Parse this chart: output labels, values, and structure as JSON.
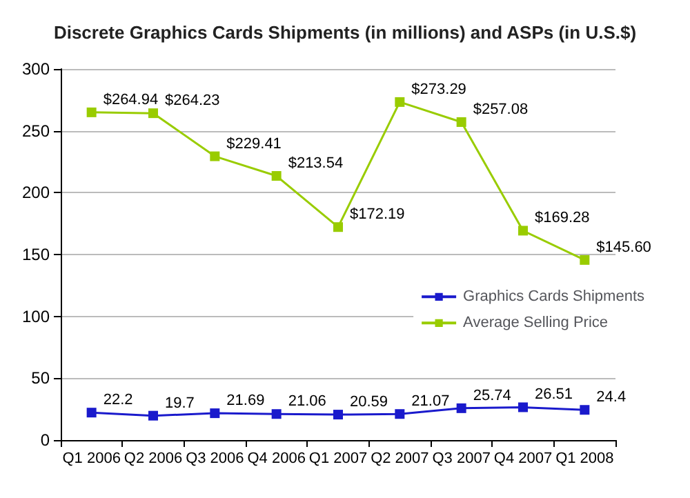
{
  "chart_data": {
    "type": "line",
    "title": "Discrete Graphics Cards Shipments (in millions) and ASPs (in U.S.$)",
    "categories": [
      "Q1 2006",
      "Q2 2006",
      "Q3 2006",
      "Q4 2006",
      "Q1 2007",
      "Q2 2007",
      "Q3 2007",
      "Q4 2007",
      "Q1 2008"
    ],
    "series": [
      {
        "name": "Graphics Cards Shipments",
        "color": "#1a1acc",
        "values": [
          22.2,
          19.7,
          21.69,
          21.06,
          20.59,
          21.07,
          25.74,
          26.51,
          24.4
        ],
        "value_labels": [
          "22.2",
          "19.7",
          "21.69",
          "21.06",
          "20.59",
          "21.07",
          "25.74",
          "26.51",
          "24.4"
        ]
      },
      {
        "name": "Average Selling Price",
        "color": "#99cc00",
        "values": [
          264.94,
          264.23,
          229.41,
          213.54,
          172.19,
          273.29,
          257.08,
          169.28,
          145.6
        ],
        "value_labels": [
          "$264.94",
          "$264.23",
          "$229.41",
          "$213.54",
          "$172.19",
          "$273.29",
          "$257.08",
          "$169.28",
          "$145.60"
        ]
      }
    ],
    "ylim": [
      0,
      300
    ],
    "yticks": [
      0,
      50,
      100,
      150,
      200,
      250,
      300
    ],
    "grid": "y",
    "legend": "right",
    "marker": "square",
    "line_style": "solid"
  }
}
